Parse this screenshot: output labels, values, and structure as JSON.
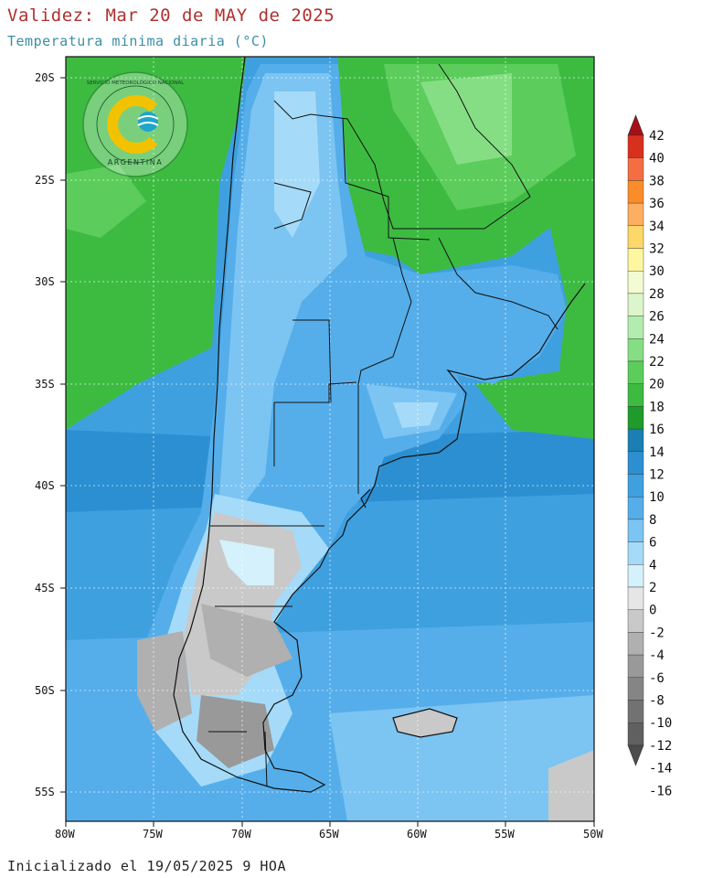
{
  "header": {
    "title": "Validez: Mar 20 de MAY de 2025",
    "subtitle": "Temperatura mínima diaria (°C)"
  },
  "footer": {
    "text": "Inicializado el 19/05/2025 9 HOA"
  },
  "logo": {
    "ring_text": "SERVICIO METEOROLÓGICO NACIONAL",
    "country": "ARGENTINA"
  },
  "map": {
    "lat_range": [
      -56.5,
      -19
    ],
    "lon_range": [
      -80,
      -50
    ],
    "lat_ticks": [
      "20S",
      "25S",
      "30S",
      "35S",
      "40S",
      "45S",
      "50S",
      "55S"
    ],
    "lon_ticks": [
      "80W",
      "75W",
      "70W",
      "65W",
      "60W",
      "55W",
      "50W"
    ]
  },
  "colorbar": {
    "labels": [
      "42",
      "40",
      "38",
      "36",
      "34",
      "32",
      "30",
      "28",
      "26",
      "24",
      "22",
      "20",
      "18",
      "16",
      "14",
      "12",
      "10",
      "8",
      "6",
      "4",
      "2",
      "0",
      "-2",
      "-4",
      "-6",
      "-8",
      "-10",
      "-12",
      "-14",
      "-16"
    ],
    "colors": [
      "#a50f15",
      "#d7301f",
      "#f46d43",
      "#fb8c2a",
      "#fdae61",
      "#fdd768",
      "#fff6a0",
      "#f3fbd3",
      "#dcf5cc",
      "#b2ecae",
      "#86de84",
      "#5ccd5c",
      "#3dbb41",
      "#1f9b2b",
      "#1c7fb3",
      "#2c8fd1",
      "#3fa0df",
      "#55aeea",
      "#7cc4f2",
      "#a5dbf8",
      "#d5f1fb",
      "#e6e6e6",
      "#c9c9c9",
      "#b0b0b0",
      "#999999",
      "#858585",
      "#727272",
      "#606060",
      "#4c4c4c"
    ]
  }
}
